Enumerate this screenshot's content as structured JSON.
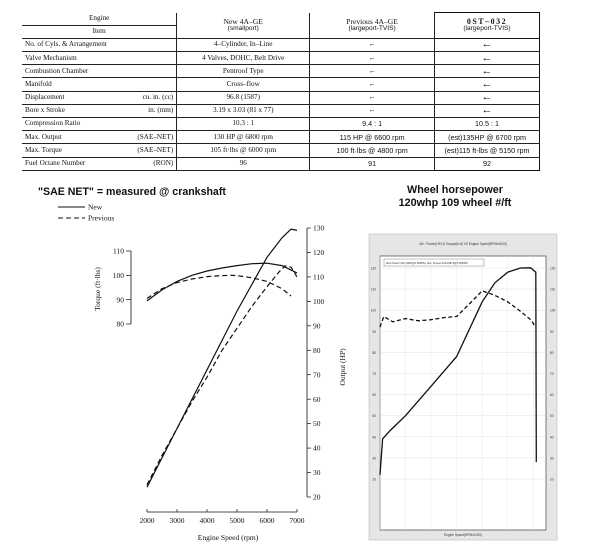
{
  "spec_table": {
    "header": {
      "col0_top": "Engine",
      "col0_bottom": "Item",
      "col1_top": "New 4A–GE",
      "col1_bottom": "(smallport)",
      "col2_top": "Previous 4A–GE",
      "col2_bottom": "(largeport-TVIS)",
      "col3_top": "0ST–032",
      "col3_bottom": "(largeport-TVIS)"
    },
    "rows": [
      {
        "label": "No. of Cyls. & Arrangement",
        "unit": "",
        "new": "4–Cylinder, In–Line",
        "previous": "←",
        "ost": "←"
      },
      {
        "label": "Valve Mechanism",
        "unit": "",
        "new": "4 Valves, DOHC, Belt Drive",
        "previous": "←",
        "ost": "←"
      },
      {
        "label": "Combustion Chamber",
        "unit": "",
        "new": "Pentroof Type",
        "previous": "←",
        "ost": "←"
      },
      {
        "label": "Manifold",
        "unit": "",
        "new": "Cross–flow",
        "previous": "←",
        "ost": "←"
      },
      {
        "label": "Displacement",
        "unit": "cu. in. (cc)",
        "new": "96.8 (1587)",
        "previous": "←",
        "ost": "←"
      },
      {
        "label": "Bore x Stroke",
        "unit": "in. (mm)",
        "new": "3.19 x 3.03 (81 x 77)",
        "previous": "←",
        "ost": "←"
      },
      {
        "label": "Compression Ratio",
        "unit": "",
        "new": "10.3 : 1",
        "previous": "9.4 : 1",
        "ost": "10.5 : 1"
      },
      {
        "label": "Max. Output",
        "unit": "(SAE–NET)",
        "new": "130 HP @ 6800 rpm",
        "previous": "115 HP @ 6600 rpm",
        "ost": "(est)135HP @ 6700 rpm"
      },
      {
        "label": "Max. Torque",
        "unit": "(SAE–NET)",
        "new": "105 ft·lbs @ 6000 rpm",
        "previous": "100 ft·lbs @ 4800 rpm",
        "ost": "(est)115 ft-lbs @ 5150 rpm"
      },
      {
        "label": "Fuel Octane Number",
        "unit": "(RON)",
        "new": "96",
        "previous": "91",
        "ost": "92"
      }
    ]
  },
  "chart_data": [
    {
      "type": "line",
      "title": "\"SAE NET\" = measured @ crankshaft",
      "xlabel": "Engine Speed (rpm)",
      "ylabel_left": "Torque (ft·lbs)",
      "ylabel_right": "Output (HP)",
      "x_ticks": [
        "2000",
        "3000",
        "4000",
        "5000",
        "6000",
        "7000"
      ],
      "y_left_ticks": [
        "80",
        "90",
        "100",
        "110"
      ],
      "y_right_ticks": [
        "20",
        "30",
        "40",
        "50",
        "60",
        "70",
        "80",
        "90",
        "100",
        "110",
        "120",
        "130"
      ],
      "xlim": [
        2000,
        7000
      ],
      "ylim_left": [
        80,
        110
      ],
      "ylim_right": [
        20,
        130
      ],
      "legend": [
        "New",
        "Previous"
      ],
      "series": [
        {
          "name": "New",
          "axis": "torque",
          "style": "solid",
          "x": [
            2000,
            2500,
            3000,
            3500,
            4000,
            4500,
            5000,
            5500,
            6000,
            6500,
            7000
          ],
          "y": [
            89.5,
            94,
            97.5,
            100,
            101.8,
            103,
            104,
            104.8,
            105,
            104,
            101
          ]
        },
        {
          "name": "Previous",
          "axis": "torque",
          "style": "dashed",
          "x": [
            2000,
            2500,
            3000,
            3500,
            4000,
            4500,
            4800,
            5000,
            5500,
            6000,
            6500,
            6800
          ],
          "y": [
            90.5,
            94.5,
            97,
            98.5,
            99.5,
            99.9,
            100,
            99.9,
            99,
            97.5,
            94.5,
            91.5
          ]
        },
        {
          "name": "New",
          "axis": "output",
          "style": "solid",
          "x": [
            2000,
            2500,
            3000,
            3500,
            4000,
            4500,
            5000,
            5500,
            6000,
            6500,
            6800,
            7000
          ],
          "y": [
            24,
            36,
            48,
            60,
            72,
            84,
            96,
            107,
            118,
            126,
            129.5,
            129
          ]
        },
        {
          "name": "Previous",
          "axis": "output",
          "style": "dashed",
          "x": [
            2000,
            2500,
            3000,
            3500,
            4000,
            4500,
            5000,
            5500,
            6000,
            6400,
            6600,
            6800,
            7000
          ],
          "y": [
            25,
            37,
            48,
            59,
            69,
            80,
            89,
            98,
            106,
            112,
            114.5,
            114,
            110
          ]
        }
      ]
    },
    {
      "type": "line",
      "title": "Wheel horsepower",
      "subtitle": "120whp 109 wheel #/ft",
      "inner_title": "4th : Power(HP) & Torque(lb-ft) VS Engine Speed(RPMx1000)",
      "inner_legend": "Max Power=120.10HP@6.89RPM, Max Torque=109.23lb-ft@5.00RPM",
      "xlabel": "Engine Speed(RPMx1000)",
      "xlim": [
        1.0,
        7.5
      ],
      "ylim": [
        20,
        130
      ],
      "y_ticks": [
        "120",
        "110",
        "100",
        "90",
        "80",
        "70",
        "60",
        "50",
        "40",
        "30",
        "20"
      ],
      "series": [
        {
          "name": "Power",
          "style": "solid",
          "x": [
            1.0,
            1.1,
            1.4,
            2.0,
            2.5,
            3.0,
            3.5,
            4.0,
            4.5,
            5.0,
            5.5,
            6.0,
            6.5,
            6.9,
            7.1,
            7.12
          ],
          "y": [
            22,
            39,
            43,
            50,
            57,
            64,
            71,
            78,
            91,
            104,
            113,
            118,
            120,
            120.1,
            118,
            28
          ]
        },
        {
          "name": "Torque",
          "style": "dashed",
          "x": [
            1.0,
            1.15,
            1.5,
            2.0,
            2.5,
            3.0,
            3.5,
            4.0,
            4.5,
            5.0,
            5.5,
            6.0,
            6.5,
            6.9,
            7.1
          ],
          "y": [
            92,
            97,
            94.5,
            96,
            95,
            95.5,
            96.5,
            97,
            103,
            109.2,
            107,
            104,
            99.5,
            95.5,
            92
          ]
        }
      ]
    }
  ]
}
